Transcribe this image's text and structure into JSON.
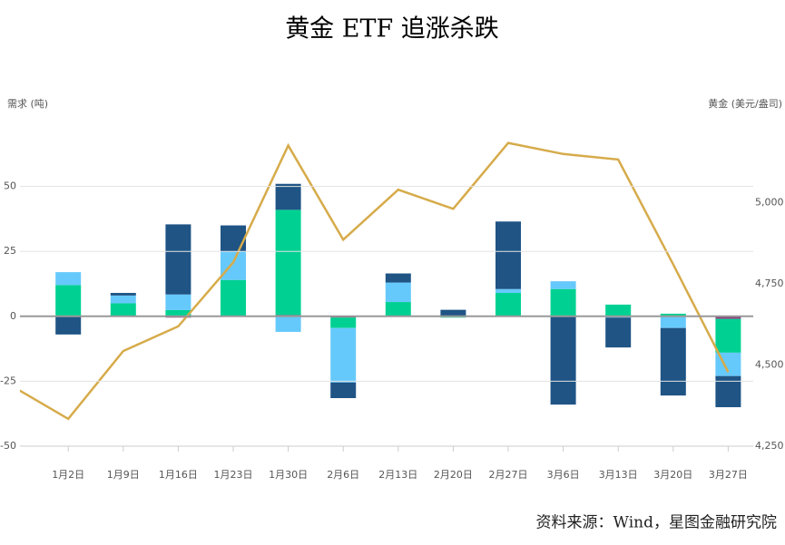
{
  "chart_data": {
    "type": "bar",
    "title": "黄金 ETF 追涨杀跌",
    "y_label": "需求 (吨)",
    "y2_label": "黄金 (美元/盎司)",
    "source": "资料来源：Wind，星图金融研究院",
    "categories": [
      null,
      "1月2日",
      "1月9日",
      "1月16日",
      "1月23日",
      "1月30日",
      "2月6日",
      "2月13日",
      "2月20日",
      "2月27日",
      "3月6日",
      "3月13日",
      "3月20日",
      "3月27日"
    ],
    "series": [
      {
        "color": "#8b3a7e",
        "values": [
          null,
          0,
          0,
          -0.5,
          0,
          0.5,
          -0.5,
          0,
          0,
          0,
          0,
          0,
          0,
          -1
        ]
      },
      {
        "color": "#00d192",
        "values": [
          null,
          12,
          5,
          2.4,
          14,
          40.5,
          -4,
          5.5,
          -0.5,
          9,
          10.5,
          4.5,
          1,
          -13
        ]
      },
      {
        "color": "#66c9fb",
        "values": [
          null,
          5,
          3,
          6,
          11,
          -6,
          -21,
          7.5,
          0,
          1.5,
          3,
          -0.5,
          -4.5,
          -9
        ]
      },
      {
        "color": "#1f5485",
        "values": [
          null,
          -7,
          1,
          27,
          10,
          10,
          -6,
          3.5,
          2.5,
          26,
          -34,
          -11.5,
          -26,
          -12
        ]
      },
      {
        "type": "line",
        "axis": "y2",
        "color": "#d6ab4a",
        "values": [
          4433,
          4334,
          4543,
          4619,
          4816,
          5176,
          4886,
          5040,
          4981,
          5184,
          5150,
          5133,
          4810,
          4478
        ]
      }
    ],
    "ylim": [
      -50,
      75
    ],
    "yticks": [
      -50,
      -25,
      0,
      25,
      50
    ],
    "y2lim": [
      4250,
      5250
    ],
    "y2ticks": [
      {
        "value": 4250,
        "label": "4,250"
      },
      {
        "value": 4500,
        "label": "4,500"
      },
      {
        "value": 4750,
        "label": "4,750"
      },
      {
        "value": 5000,
        "label": "5,000"
      }
    ],
    "grid": true
  }
}
